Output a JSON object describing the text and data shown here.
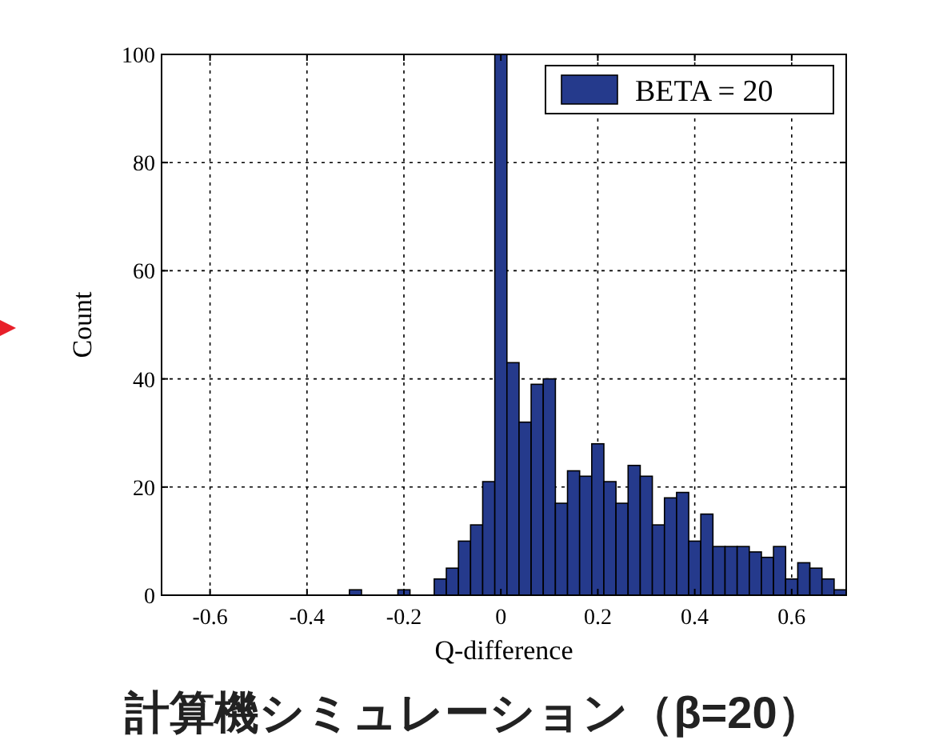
{
  "chart_data": {
    "type": "histogram",
    "xlabel": "Q-difference",
    "ylabel": "Count",
    "series": [
      {
        "name": "BETA = 20",
        "color": "#253a8c",
        "values": [
          1,
          0,
          0,
          0,
          1,
          0,
          0,
          3,
          5,
          10,
          13,
          21,
          100,
          43,
          32,
          39,
          40,
          17,
          23,
          22,
          28,
          21,
          17,
          24,
          22,
          13,
          18,
          19,
          10,
          15,
          9,
          9,
          9,
          8,
          7,
          9,
          3,
          6,
          5,
          3,
          1
        ]
      }
    ],
    "bins": [
      -0.3125,
      -0.2875,
      -0.2625,
      -0.2375,
      -0.2125,
      -0.1875,
      -0.1625,
      -0.1375,
      -0.1125,
      -0.0875,
      -0.0625,
      -0.0375,
      -0.0125,
      0.0125,
      0.0375,
      0.0625,
      0.0875,
      0.1125,
      0.1375,
      0.1625,
      0.1875,
      0.2125,
      0.2375,
      0.2625,
      0.2875,
      0.3125,
      0.3375,
      0.3625,
      0.3875,
      0.4125,
      0.4375,
      0.4625,
      0.4875,
      0.5125,
      0.5375,
      0.5625,
      0.5875,
      0.6125,
      0.6375,
      0.6625,
      0.6875,
      0.7125
    ],
    "xlim": [
      -0.7,
      0.7125
    ],
    "xticks": [
      -0.6,
      -0.4,
      -0.2,
      0,
      0.2,
      0.4,
      0.6
    ],
    "ylim": [
      0,
      100
    ],
    "yticks": [
      0,
      20,
      40,
      60,
      80,
      100
    ],
    "grid": true,
    "legend": "top right",
    "annotations": [
      "計算機シミュレーション（β=20）"
    ]
  }
}
